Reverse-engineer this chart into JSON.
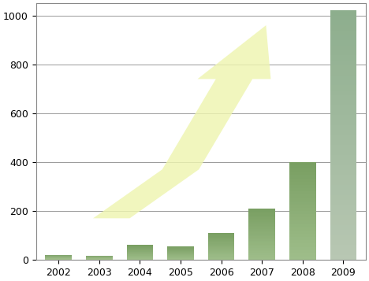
{
  "years": [
    "2002",
    "2003",
    "2004",
    "2005",
    "2006",
    "2007",
    "2008",
    "2009"
  ],
  "values": [
    20,
    18,
    60,
    55,
    110,
    210,
    400,
    1020
  ],
  "ylim": [
    0,
    1050
  ],
  "yticks": [
    0,
    200,
    400,
    600,
    800,
    1000
  ],
  "background_color": "#ffffff",
  "grid_color": "#999999",
  "bar_colors": [
    "#8aaa70",
    "#8aaa70",
    "#8aaa70",
    "#8aaa70",
    "#8aaa70",
    "#7aa060",
    "#5a8a4a",
    "#a0b898"
  ],
  "arrow_fill": "#eef5b0",
  "arrow_edge": "#d8e890",
  "arrow_alpha": 0.82,
  "figsize": [
    4.68,
    3.57
  ],
  "dpi": 100
}
